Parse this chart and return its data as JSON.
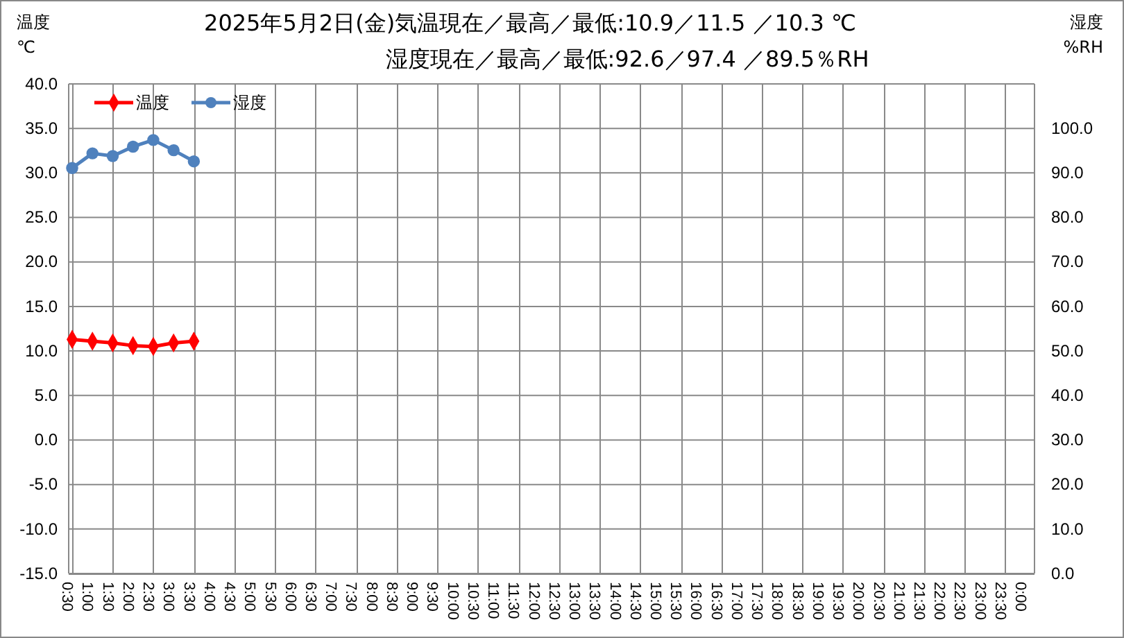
{
  "chart_data": {
    "type": "line",
    "title": "2025年5月2日(金)気温現在／最高／最低:10.9／11.5 ／10.3 ℃",
    "subtitle": "湿度現在／最高／最低:92.6／97.4 ／89.5％RH",
    "ylabel": "温度\n℃",
    "y2label": "湿度\n%RH",
    "categories": [
      "0:30",
      "1:00",
      "1:30",
      "2:00",
      "2:30",
      "3:00",
      "3:30",
      "4:00",
      "4:30",
      "5:00",
      "5:30",
      "6:00",
      "6:30",
      "7:00",
      "7:30",
      "8:00",
      "8:30",
      "9:00",
      "9:30",
      "10:00",
      "10:30",
      "11:00",
      "11:30",
      "12:00",
      "12:30",
      "13:00",
      "13:30",
      "14:00",
      "14:30",
      "15:00",
      "15:30",
      "16:00",
      "16:30",
      "17:00",
      "17:30",
      "18:00",
      "18:30",
      "19:00",
      "19:30",
      "20:00",
      "20:30",
      "21:00",
      "21:30",
      "22:00",
      "22:30",
      "23:00",
      "23:30",
      "0:00"
    ],
    "series": [
      {
        "name": "温度",
        "color": "#ff0000",
        "marker": "diamond",
        "values": [
          11.3,
          11.1,
          10.9,
          10.6,
          10.5,
          10.9,
          11.1,
          null,
          null,
          null,
          null,
          null,
          null,
          null,
          null,
          null,
          null,
          null,
          null,
          null,
          null,
          null,
          null,
          null,
          null,
          null,
          null,
          null,
          null,
          null,
          null,
          null,
          null,
          null,
          null,
          null,
          null,
          null,
          null,
          null,
          null,
          null,
          null,
          null,
          null,
          null,
          null,
          null
        ]
      },
      {
        "name": "湿度",
        "color": "#4f81bd",
        "marker": "circle",
        "axis": "y2",
        "values": [
          91.1,
          94.4,
          93.8,
          95.9,
          97.4,
          95.1,
          92.6,
          null,
          null,
          null,
          null,
          null,
          null,
          null,
          null,
          null,
          null,
          null,
          null,
          null,
          null,
          null,
          null,
          null,
          null,
          null,
          null,
          null,
          null,
          null,
          null,
          null,
          null,
          null,
          null,
          null,
          null,
          null,
          null,
          null,
          null,
          null,
          null,
          null,
          null,
          null,
          null,
          null
        ]
      }
    ],
    "ylim": [
      -15,
      40
    ],
    "yticks": [
      {
        "value": -15,
        "label": "-15.0"
      },
      {
        "value": -10,
        "label": "-10.0"
      },
      {
        "value": -5,
        "label": "-5.0"
      },
      {
        "value": 0,
        "label": "0.0"
      },
      {
        "value": 5,
        "label": "5.0"
      },
      {
        "value": 10,
        "label": "10.0"
      },
      {
        "value": 15,
        "label": "15.0"
      },
      {
        "value": 20,
        "label": "20.0"
      },
      {
        "value": 25,
        "label": "25.0"
      },
      {
        "value": 30,
        "label": "30.0"
      },
      {
        "value": 35,
        "label": "35.0"
      },
      {
        "value": 40,
        "label": "40.0"
      }
    ],
    "y2lim": [
      0,
      110
    ],
    "y2ticks": [
      {
        "value": 0,
        "label": "0.0"
      },
      {
        "value": 10,
        "label": "10.0"
      },
      {
        "value": 20,
        "label": "20.0"
      },
      {
        "value": 30,
        "label": "30.0"
      },
      {
        "value": 40,
        "label": "40.0"
      },
      {
        "value": 50,
        "label": "50.0"
      },
      {
        "value": 60,
        "label": "60.0"
      },
      {
        "value": 70,
        "label": "70.0"
      },
      {
        "value": 80,
        "label": "80.0"
      },
      {
        "value": 90,
        "label": "90.0"
      },
      {
        "value": 100,
        "label": "100.0"
      }
    ],
    "grid": true,
    "legend": "top left"
  }
}
